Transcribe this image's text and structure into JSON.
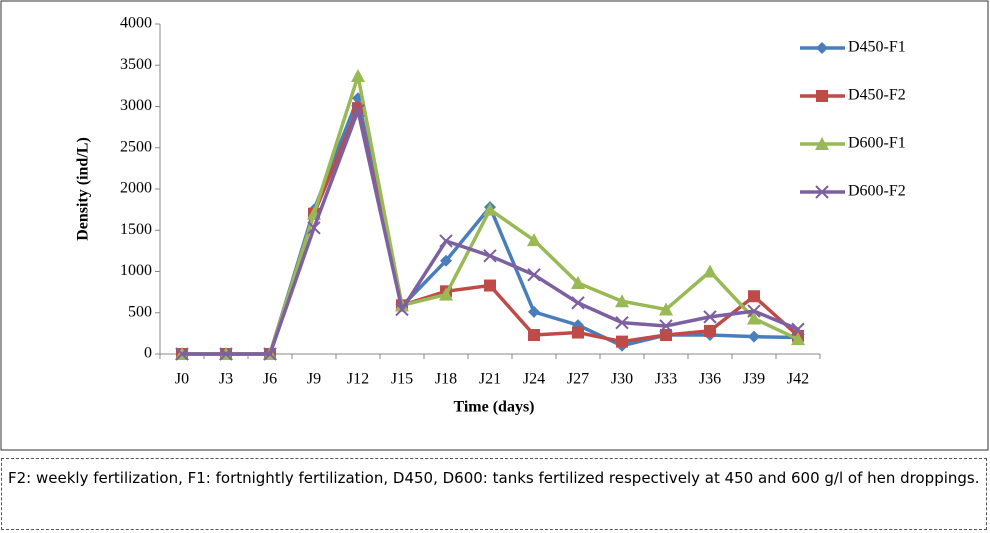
{
  "chart_data": {
    "type": "line",
    "x_label": "Time (days)",
    "y_label": "Density (ind/L)",
    "categories": [
      "J0",
      "J3",
      "J6",
      "J9",
      "J12",
      "J15",
      "J18",
      "J21",
      "J24",
      "J27",
      "J30",
      "J33",
      "J36",
      "J39",
      "J42"
    ],
    "series": [
      {
        "name": "D450-F1",
        "color": "#4a7ebb",
        "marker": "diamond",
        "values": [
          0,
          0,
          0,
          1750,
          3100,
          580,
          1130,
          1780,
          510,
          350,
          100,
          230,
          230,
          210,
          200
        ]
      },
      {
        "name": "D450-F2",
        "color": "#be4b48",
        "marker": "square",
        "values": [
          0,
          0,
          0,
          1700,
          2980,
          590,
          760,
          830,
          230,
          260,
          150,
          230,
          280,
          700,
          220
        ]
      },
      {
        "name": "D600-F1",
        "color": "#98b954",
        "marker": "triangle",
        "values": [
          0,
          0,
          0,
          1700,
          3370,
          590,
          720,
          1750,
          1380,
          860,
          640,
          540,
          1000,
          430,
          180
        ]
      },
      {
        "name": "D600-F2",
        "color": "#7d60a0",
        "marker": "x",
        "values": [
          0,
          0,
          0,
          1530,
          2950,
          540,
          1370,
          1190,
          960,
          620,
          380,
          340,
          450,
          520,
          300
        ]
      }
    ],
    "ylim": [
      0,
      4000
    ],
    "yticks": [
      0,
      500,
      1000,
      1500,
      2000,
      2500,
      3000,
      3500,
      4000
    ],
    "grid": false,
    "legend": "right"
  },
  "caption": "F2: weekly fertilization, F1: fortnightly fertilization, D450, D600: tanks fertilized respectively at 450 and 600 g/l of hen droppings."
}
